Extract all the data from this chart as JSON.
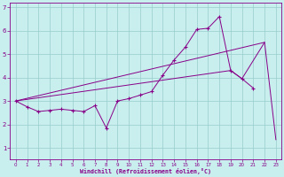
{
  "bg_color": "#c8eeee",
  "line_color": "#880088",
  "grid_color": "#99cccc",
  "xlabel": "Windchill (Refroidissement éolien,°C)",
  "xlim": [
    -0.5,
    23.5
  ],
  "ylim": [
    0.5,
    7.2
  ],
  "yticks": [
    1,
    2,
    3,
    4,
    5,
    6,
    7
  ],
  "xticks": [
    0,
    1,
    2,
    3,
    4,
    5,
    6,
    7,
    8,
    9,
    10,
    11,
    12,
    13,
    14,
    15,
    16,
    17,
    18,
    19,
    20,
    21,
    22,
    23
  ],
  "line1_x": [
    0,
    1,
    2,
    3,
    4,
    5,
    6,
    7,
    8,
    9,
    10,
    11,
    12,
    13,
    14,
    15,
    16,
    17,
    18,
    19,
    20,
    21
  ],
  "line1_y": [
    3.0,
    2.75,
    2.55,
    2.6,
    2.65,
    2.6,
    2.55,
    2.8,
    1.85,
    3.0,
    3.1,
    3.25,
    3.4,
    4.1,
    4.75,
    5.3,
    6.05,
    6.1,
    6.6,
    4.3,
    3.95,
    3.55
  ],
  "line2_x": [
    0,
    22,
    23
  ],
  "line2_y": [
    3.0,
    5.5,
    1.35
  ],
  "line3_x": [
    0,
    19,
    20,
    22
  ],
  "line3_y": [
    3.0,
    4.3,
    3.95,
    5.5
  ]
}
